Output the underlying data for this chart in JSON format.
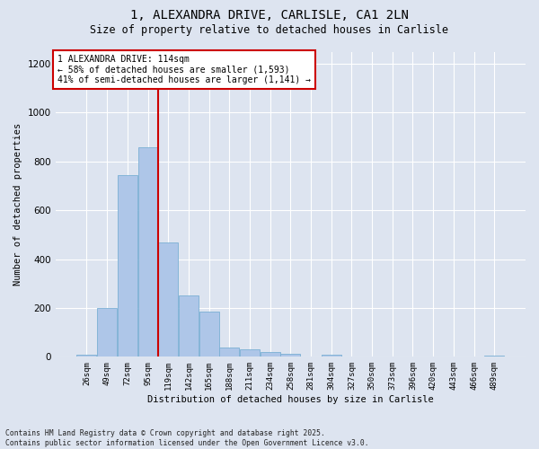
{
  "title1": "1, ALEXANDRA DRIVE, CARLISLE, CA1 2LN",
  "title2": "Size of property relative to detached houses in Carlisle",
  "xlabel": "Distribution of detached houses by size in Carlisle",
  "ylabel": "Number of detached properties",
  "categories": [
    "26sqm",
    "49sqm",
    "72sqm",
    "95sqm",
    "119sqm",
    "142sqm",
    "165sqm",
    "188sqm",
    "211sqm",
    "234sqm",
    "258sqm",
    "281sqm",
    "304sqm",
    "327sqm",
    "350sqm",
    "373sqm",
    "396sqm",
    "420sqm",
    "443sqm",
    "466sqm",
    "489sqm"
  ],
  "values": [
    10,
    200,
    745,
    860,
    470,
    250,
    185,
    38,
    30,
    18,
    12,
    0,
    8,
    0,
    0,
    0,
    0,
    0,
    0,
    0,
    5
  ],
  "bar_color": "#aec6e8",
  "bar_edgecolor": "#7aafd4",
  "vline_color": "#cc0000",
  "vline_x_index": 3,
  "annotation_text": "1 ALEXANDRA DRIVE: 114sqm\n← 58% of detached houses are smaller (1,593)\n41% of semi-detached houses are larger (1,141) →",
  "annotation_box_facecolor": "#ffffff",
  "annotation_box_edgecolor": "#cc0000",
  "ylim": [
    0,
    1250
  ],
  "yticks": [
    0,
    200,
    400,
    600,
    800,
    1000,
    1200
  ],
  "background_color": "#dde4f0",
  "grid_color": "#ffffff",
  "footnote": "Contains HM Land Registry data © Crown copyright and database right 2025.\nContains public sector information licensed under the Open Government Licence v3.0."
}
